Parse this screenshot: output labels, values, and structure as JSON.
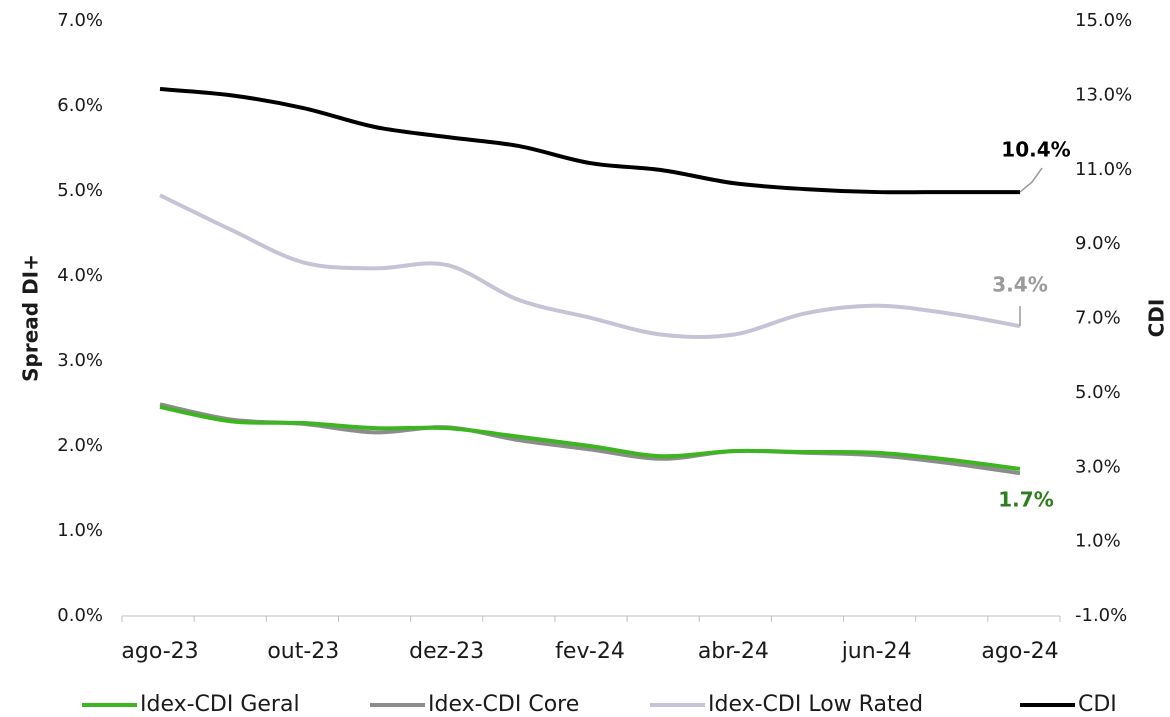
{
  "chart_data": {
    "type": "line",
    "ylabel": "Spread DI+",
    "y2label": "CDI",
    "categories": [
      "ago-23",
      null,
      "out-23",
      null,
      "dez-23",
      null,
      "fev-24",
      null,
      "abr-24",
      null,
      "jun-24",
      null,
      "ago-24"
    ],
    "ylim": [
      0,
      7
    ],
    "yticks": [
      {
        "value": 0,
        "label": "0.0%"
      },
      {
        "value": 1,
        "label": "1.0%"
      },
      {
        "value": 2,
        "label": "2.0%"
      },
      {
        "value": 3,
        "label": "3.0%"
      },
      {
        "value": 4,
        "label": "4.0%"
      },
      {
        "value": 5,
        "label": "5.0%"
      },
      {
        "value": 6,
        "label": "6.0%"
      },
      {
        "value": 7,
        "label": "7.0%"
      }
    ],
    "y2lim": [
      -1,
      15
    ],
    "y2ticks": [
      {
        "value": -1,
        "label": "-1.0%"
      },
      {
        "value": 1,
        "label": "1.0%"
      },
      {
        "value": 3,
        "label": "3.0%"
      },
      {
        "value": 5,
        "label": "5.0%"
      },
      {
        "value": 7,
        "label": "7.0%"
      },
      {
        "value": 9,
        "label": "9.0%"
      },
      {
        "value": 11,
        "label": "11.0%"
      },
      {
        "value": 13,
        "label": "13.0%"
      },
      {
        "value": 15,
        "label": "15.0%"
      }
    ],
    "legend": "bottom",
    "series": [
      {
        "name": "Idex-CDI Geral",
        "color": "#3cb521",
        "label_color": "#2e7d1e",
        "values": [
          2.46,
          2.29,
          2.27,
          2.21,
          2.21,
          2.11,
          2.0,
          1.88,
          1.94,
          1.93,
          1.92,
          1.84,
          1.73
        ],
        "value_labels": [
          null,
          null,
          null,
          null,
          null,
          null,
          null,
          null,
          null,
          null,
          null,
          null,
          "1.7%"
        ]
      },
      {
        "name": "Idex-CDI Core",
        "color": "#8c8c8c",
        "values": [
          2.49,
          2.31,
          2.26,
          2.16,
          2.22,
          2.07,
          1.96,
          1.85,
          1.94,
          1.92,
          1.89,
          1.8,
          1.68
        ]
      },
      {
        "name": "Idex-CDI Low Rated",
        "color": "#c4c4d6",
        "label_color": "#9a9a9a",
        "values": [
          4.95,
          4.54,
          4.16,
          4.09,
          4.13,
          3.72,
          3.51,
          3.31,
          3.31,
          3.56,
          3.65,
          3.56,
          3.41
        ],
        "value_labels": [
          null,
          null,
          null,
          null,
          null,
          null,
          null,
          null,
          null,
          null,
          null,
          null,
          "3.4%"
        ]
      },
      {
        "name": "CDI",
        "color": "#000000",
        "label_color": "#000000",
        "axis": "y2",
        "values": [
          13.17,
          13.0,
          12.66,
          12.15,
          11.88,
          11.64,
          11.18,
          10.99,
          10.64,
          10.48,
          10.4,
          10.4,
          10.4
        ],
        "value_labels": [
          null,
          null,
          null,
          null,
          null,
          null,
          null,
          null,
          null,
          null,
          null,
          null,
          "10.4%"
        ]
      }
    ]
  }
}
